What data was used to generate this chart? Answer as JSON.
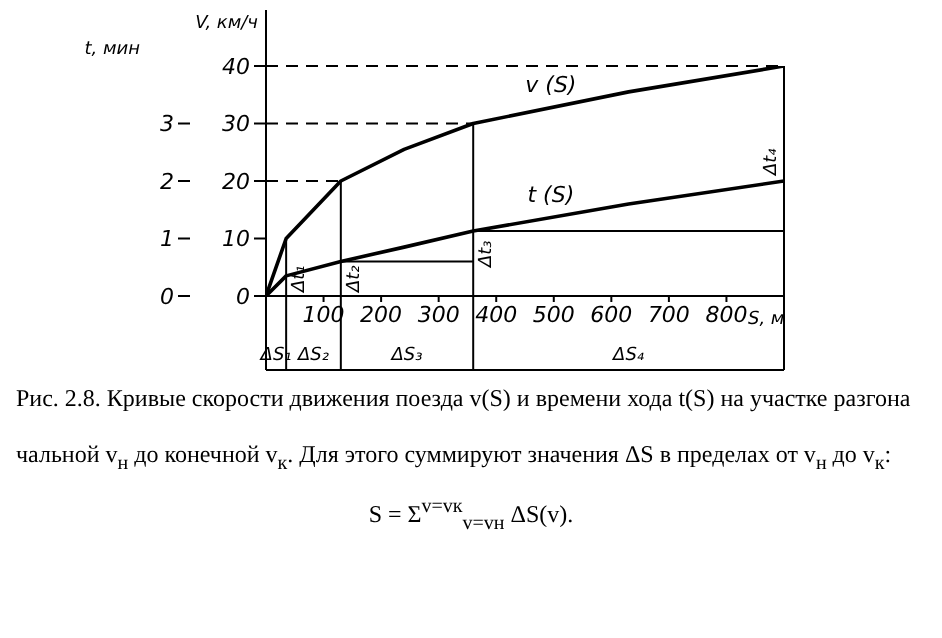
{
  "chart_data": {
    "type": "line",
    "title": "Рис. 2.8. Кривые скорости движения поезда v(S) и времени хода t(S) на участке разгона",
    "xlabel": "S, м",
    "ylabel": "V, км/ч",
    "y2label": "t, мин",
    "x": [
      0,
      35,
      130,
      240,
      360,
      630,
      900
    ],
    "series": [
      {
        "name": "v (S)",
        "color": "#000000",
        "values": [
          0,
          10,
          20,
          25.5,
          30,
          35.5,
          40
        ]
      },
      {
        "name": "t (S)",
        "color": "#000000",
        "axis": "y2",
        "values": [
          0,
          0.35,
          0.6,
          0.85,
          1.13,
          1.6,
          2.0
        ]
      }
    ],
    "xlim": [
      0,
      900
    ],
    "xticks": [
      100,
      200,
      300,
      400,
      500,
      600,
      700,
      800
    ],
    "ylim": [
      0,
      40
    ],
    "yticks": [
      0,
      10,
      20,
      30,
      40
    ],
    "y2lim": [
      0,
      4
    ],
    "y2ticks": [
      0,
      1,
      2,
      3
    ],
    "ref_lines": [
      {
        "axis": "x",
        "value": 35,
        "line_style": "solid"
      },
      {
        "axis": "x",
        "value": 130,
        "line_style": "solid"
      },
      {
        "axis": "x",
        "value": 360,
        "line_style": "solid"
      },
      {
        "axis": "x",
        "value": 900,
        "line_style": "solid"
      },
      {
        "axis": "y",
        "value": 20,
        "line_style": "dashed"
      },
      {
        "axis": "y",
        "value": 30,
        "line_style": "dashed"
      },
      {
        "axis": "y",
        "value": 40,
        "line_style": "dashed"
      },
      {
        "axis": "y",
        "value": 6,
        "line_style": "solid"
      },
      {
        "axis": "y",
        "value": 11.3,
        "line_style": "solid"
      }
    ],
    "annotations": [
      "Δt₁",
      "Δt₂",
      "Δt₃",
      "Δt₄",
      "ΔS₁",
      "ΔS₂",
      "ΔS₃",
      "ΔS₄",
      "чальной v$_{н}$ до конечной v$_{к}$. Для этого суммируют значения ΔS в пределах от v$_{н}$ до v$_{к}$:",
      "S = Σ$^{v=vк}$$_{v=vн}$ ΔS(v)."
    ],
    "marker": "none",
    "line_style": "solid"
  }
}
